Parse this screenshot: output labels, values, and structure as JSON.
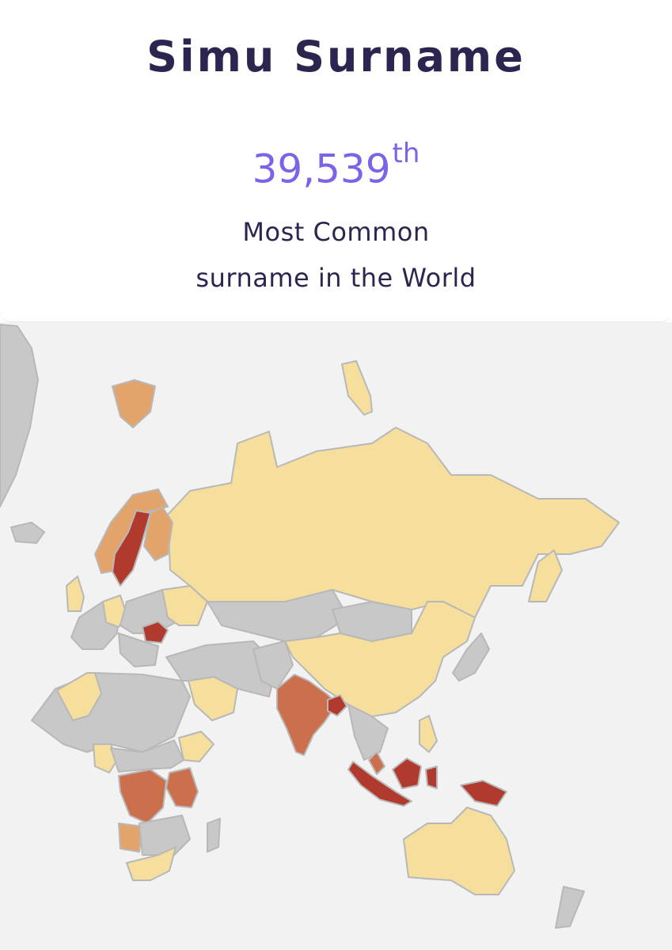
{
  "header": {
    "title": "Simu Surname",
    "rank_number": "39,539",
    "rank_suffix": "th",
    "subtitle_line1": "Most Common",
    "subtitle_line2": "surname in the World"
  },
  "map": {
    "colors": {
      "ocean": "#f2f2f2",
      "no_data": "#c8c8c8",
      "low": "#f6df9c",
      "medium_low": "#e3a46c",
      "medium_high": "#cc6f4c",
      "high": "#b03a2e"
    },
    "countries": [
      {
        "name": "Sweden",
        "level": "high"
      },
      {
        "name": "Romania",
        "level": "high"
      },
      {
        "name": "Bangladesh",
        "level": "high"
      },
      {
        "name": "Indonesia",
        "level": "high"
      },
      {
        "name": "Papua New Guinea",
        "level": "high"
      },
      {
        "name": "India",
        "level": "medium_high"
      },
      {
        "name": "DR Congo",
        "level": "medium_high"
      },
      {
        "name": "Tanzania",
        "level": "medium_high"
      },
      {
        "name": "Malaysia",
        "level": "medium_high"
      },
      {
        "name": "Finland",
        "level": "medium_low"
      },
      {
        "name": "Norway",
        "level": "medium_low"
      },
      {
        "name": "Svalbard",
        "level": "medium_low"
      },
      {
        "name": "Angola",
        "level": "medium_low"
      },
      {
        "name": "Zambia",
        "level": "medium_low"
      },
      {
        "name": "Russia",
        "level": "low"
      },
      {
        "name": "China",
        "level": "low"
      },
      {
        "name": "Australia",
        "level": "low"
      },
      {
        "name": "Algeria",
        "level": "low"
      },
      {
        "name": "Saudi Arabia",
        "level": "low"
      },
      {
        "name": "South Africa",
        "level": "low"
      },
      {
        "name": "Ethiopia",
        "level": "low"
      },
      {
        "name": "Cameroon",
        "level": "low"
      },
      {
        "name": "Germany",
        "level": "low"
      },
      {
        "name": "United Kingdom",
        "level": "low"
      },
      {
        "name": "Philippines",
        "level": "low"
      }
    ]
  }
}
